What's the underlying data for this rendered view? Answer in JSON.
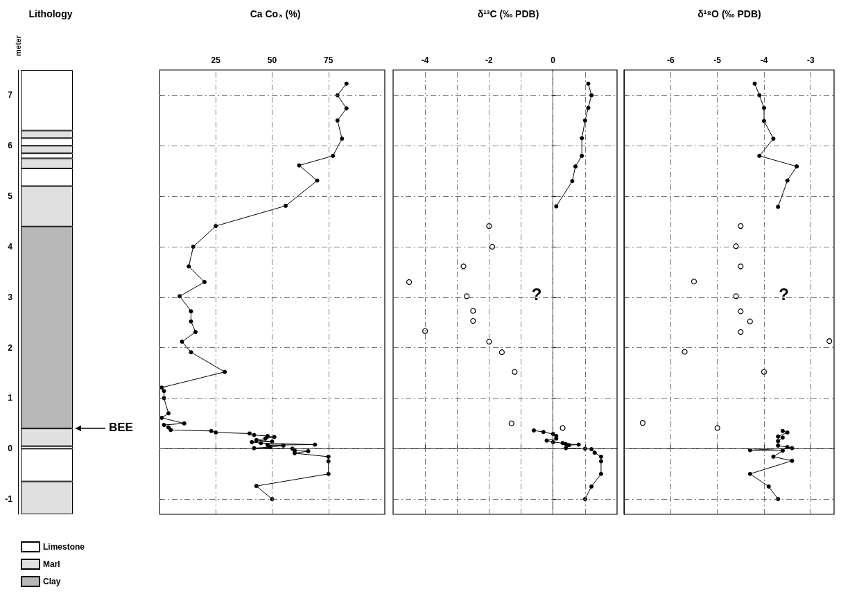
{
  "chart_data": [
    {
      "type": "bar",
      "stacked": true,
      "title": "Lithology",
      "ylabel": "meter",
      "categories": [
        null
      ],
      "ylim": [
        -1.3,
        7.5
      ],
      "yticks": [
        -1,
        0,
        1,
        2,
        3,
        4,
        5,
        6,
        7
      ],
      "tick_labels": "y",
      "legend": "bottom left",
      "annotations": [
        "BEE"
      ],
      "series": [
        {
          "name": "Limestone",
          "color": "#ffffff",
          "values": [
            0.05
          ]
        },
        {
          "name": "Marl",
          "color": "#e0e0e0",
          "values": [
            0.35
          ]
        },
        {
          "name": "Clay",
          "color": "#b8b8b8",
          "values": [
            4.0
          ]
        },
        {
          "color": "#e0e0e0",
          "values": [
            0.8
          ]
        },
        {
          "color": "#ffffff",
          "values": [
            0.35
          ]
        },
        {
          "color": "#e0e0e0",
          "values": [
            0.2
          ]
        },
        {
          "color": "#ffffff",
          "values": [
            0.1
          ]
        },
        {
          "color": "#e0e0e0",
          "values": [
            0.15
          ]
        },
        {
          "color": "#ffffff",
          "values": [
            0.15
          ]
        },
        {
          "color": "#e0e0e0",
          "values": [
            0.15
          ]
        },
        {
          "color": "#ffffff",
          "values": [
            1.2
          ]
        },
        {
          "color": "#ffffff",
          "values": [
            -0.65
          ]
        },
        {
          "color": "#e0e0e0",
          "values": [
            -0.65
          ]
        }
      ]
    },
    {
      "type": "line",
      "title": "Ca Co₃ (%)",
      "xlim": [
        0,
        100
      ],
      "xticks": [
        25,
        50,
        75
      ],
      "ylim": [
        -1.3,
        7.5
      ],
      "yticks": [
        -1,
        0,
        1,
        2,
        3,
        4,
        5,
        6,
        7
      ],
      "tick_labels": "x",
      "grid": true,
      "marker": "circle",
      "series": [
        {
          "color": "#000000",
          "x": [
            83,
            79,
            83,
            79,
            81,
            77,
            62,
            70,
            56,
            25,
            15,
            13,
            20,
            9,
            14,
            14,
            16,
            10,
            14,
            29,
            1,
            2,
            2,
            4,
            1,
            11,
            2,
            4,
            5,
            23,
            25,
            40,
            42,
            48,
            51,
            47,
            43,
            50,
            41,
            45,
            69,
            48,
            55,
            49,
            42,
            59,
            60,
            66,
            60,
            75,
            75,
            75,
            43,
            50
          ],
          "values": [
            7.23,
            7.0,
            6.74,
            6.5,
            6.14,
            5.8,
            5.61,
            5.31,
            4.81,
            4.41,
            4.0,
            3.61,
            3.3,
            3.02,
            2.72,
            2.52,
            2.31,
            2.12,
            1.91,
            1.52,
            1.21,
            1.14,
            1.0,
            0.7,
            0.61,
            0.5,
            0.47,
            0.42,
            0.37,
            0.35,
            0.32,
            0.3,
            0.27,
            0.25,
            0.23,
            0.2,
            0.17,
            0.14,
            0.13,
            0.11,
            0.08,
            0.07,
            0.06,
            0.03,
            0.01,
            0,
            -0.04,
            -0.05,
            -0.09,
            -0.16,
            -0.25,
            -0.5,
            -0.74,
            -1.0
          ]
        }
      ]
    },
    {
      "type": "line",
      "title": "δ¹³C (‰ PDB)",
      "xlim": [
        -5,
        2
      ],
      "xticks": [
        -4,
        {
          "value": -3,
          "label": null
        },
        -2,
        {
          "value": -1,
          "label": null
        },
        0,
        {
          "value": 1,
          "label": null
        }
      ],
      "ylim": [
        -1.3,
        7.5
      ],
      "yticks": [
        -1,
        0,
        1,
        2,
        3,
        4,
        5,
        6,
        7
      ],
      "tick_labels": "x",
      "grid": true,
      "marker": "circle",
      "annotations": [
        "?"
      ],
      "series": [
        {
          "color": "#000000",
          "x": [
            1.1,
            1.2,
            1.1,
            1.0,
            0.9,
            0.9,
            0.7,
            0.6,
            0.1,
            null,
            -0.6,
            -0.3,
            0.0,
            0.1,
            0.1,
            -0.2,
            0.0,
            0.3,
            0.4,
            0.8,
            0.5,
            0.4,
            1.0,
            1.2,
            1.3,
            1.5,
            1.5,
            1.5,
            1.2,
            1.0
          ],
          "values": [
            7.23,
            7.0,
            6.75,
            6.5,
            6.15,
            5.8,
            5.59,
            5.3,
            4.8,
            null,
            0.36,
            0.33,
            0.29,
            0.25,
            0.2,
            0.16,
            0.13,
            0.11,
            0.09,
            0.08,
            0.07,
            0.01,
            0.0,
            -0.01,
            -0.08,
            -0.16,
            -0.25,
            -0.5,
            -0.75,
            -1.0
          ]
        },
        {
          "type": "scatter",
          "color": "#000000",
          "x": [
            -2.0,
            -1.9,
            -2.8,
            -4.5,
            -2.7,
            -2.5,
            -2.5,
            -4.0,
            -2.0,
            -1.6,
            -1.2,
            -1.3,
            0.3
          ],
          "values": [
            4.41,
            4.0,
            3.61,
            3.3,
            3.02,
            2.73,
            2.53,
            2.33,
            2.12,
            1.91,
            1.52,
            0.5,
            0.41
          ]
        }
      ]
    },
    {
      "type": "line",
      "title": "δ¹⁸O (‰ PDB)",
      "xlim": [
        -7,
        -2.5
      ],
      "xticks": [
        -6,
        -5,
        -4,
        -3
      ],
      "ylim": [
        -1.3,
        7.5
      ],
      "yticks": [
        -1,
        0,
        1,
        2,
        3,
        4,
        5,
        6,
        7
      ],
      "tick_labels": "x",
      "grid": true,
      "marker": "circle",
      "annotations": [
        "?"
      ],
      "series": [
        {
          "color": "#000000",
          "x": [
            -4.2,
            -4.1,
            -4.0,
            -4.0,
            -3.8,
            -4.1,
            -3.3,
            -3.5,
            -3.7,
            null,
            -3.6,
            -3.5,
            -3.7,
            -3.6,
            -3.7,
            -3.7,
            -3.5,
            -3.4,
            -4.3,
            -3.6,
            -3.8,
            -3.4,
            -4.3,
            -3.9,
            -3.7
          ],
          "values": [
            7.23,
            7.0,
            6.75,
            6.49,
            6.14,
            5.8,
            5.59,
            5.31,
            4.79,
            null,
            0.35,
            0.32,
            0.24,
            0.22,
            0.15,
            0.06,
            0.03,
            0.01,
            -0.03,
            -0.04,
            -0.16,
            -0.24,
            -0.5,
            -0.75,
            -1.0
          ]
        },
        {
          "type": "scatter",
          "color": "#000000",
          "x": [
            -4.5,
            -4.6,
            -4.5,
            -5.5,
            -4.6,
            -4.5,
            -4.3,
            -4.5,
            -2.6,
            -5.7,
            -4.0,
            -6.6,
            -5.0
          ],
          "values": [
            4.41,
            4.01,
            3.61,
            3.31,
            3.02,
            2.72,
            2.52,
            2.31,
            2.13,
            1.92,
            1.52,
            0.51,
            0.41
          ]
        }
      ]
    }
  ]
}
